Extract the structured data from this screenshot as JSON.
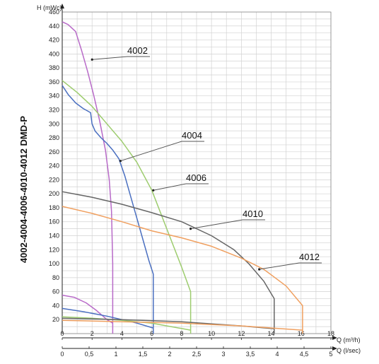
{
  "chart_data": {
    "type": "line",
    "title": "4002-4004-4006-4010-4012 DMD-P",
    "ylabel": "H (mWc)",
    "xlabel": "Q (m³/h)",
    "x2label": "Q (l/sec)",
    "xlim": [
      0,
      18
    ],
    "ylim": [
      0,
      460
    ],
    "x_ticks": [
      "0",
      "2",
      "4",
      "6",
      "8",
      "10",
      "12",
      "14",
      "16",
      "18"
    ],
    "x2_ticks": [
      "0",
      "0,5",
      "1",
      "1,5",
      "2",
      "2,5",
      "3",
      "3,5",
      "4",
      "4,5",
      "5"
    ],
    "y_ticks": [
      "20",
      "40",
      "60",
      "80",
      "100",
      "120",
      "140",
      "160",
      "180",
      "200",
      "220",
      "240",
      "260",
      "280",
      "300",
      "320",
      "340",
      "360",
      "380",
      "400",
      "420",
      "440",
      "460"
    ],
    "grid": true,
    "series": [
      {
        "name": "4002",
        "color": "#b86ac8",
        "head": [
          [
            0,
            446
          ],
          [
            0.4,
            442
          ],
          [
            0.9,
            432
          ],
          [
            1.3,
            405
          ],
          [
            1.7,
            375
          ],
          [
            2.1,
            342
          ],
          [
            2.5,
            305
          ],
          [
            2.9,
            262
          ],
          [
            3.15,
            220
          ],
          [
            3.3,
            175
          ],
          [
            3.38,
            100
          ],
          [
            3.38,
            0
          ]
        ],
        "power": [
          [
            0,
            55
          ],
          [
            0.8,
            52
          ],
          [
            1.6,
            44
          ],
          [
            2.3,
            33
          ],
          [
            3.0,
            20
          ],
          [
            3.38,
            15
          ]
        ]
      },
      {
        "name": "4004",
        "color": "#4a6fc0",
        "head": [
          [
            0,
            355
          ],
          [
            0.4,
            342
          ],
          [
            0.9,
            330
          ],
          [
            1.4,
            322
          ],
          [
            1.9,
            316
          ],
          [
            2.0,
            300
          ],
          [
            2.2,
            290
          ],
          [
            2.6,
            280
          ],
          [
            3.0,
            272
          ],
          [
            3.4,
            262
          ],
          [
            3.8,
            250
          ],
          [
            4.2,
            225
          ],
          [
            4.6,
            195
          ],
          [
            5.0,
            165
          ],
          [
            5.4,
            135
          ],
          [
            5.8,
            105
          ],
          [
            6.1,
            85
          ],
          [
            6.1,
            0
          ]
        ],
        "power": [
          [
            0,
            36
          ],
          [
            1.5,
            31
          ],
          [
            3.0,
            25
          ],
          [
            4.0,
            20
          ],
          [
            5.0,
            15
          ],
          [
            6.1,
            8
          ]
        ]
      },
      {
        "name": "4006",
        "color": "#9dcc6e",
        "head": [
          [
            0,
            362
          ],
          [
            1.0,
            345
          ],
          [
            2.0,
            325
          ],
          [
            3.0,
            300
          ],
          [
            4.0,
            275
          ],
          [
            5.0,
            245
          ],
          [
            6.0,
            205
          ],
          [
            7.0,
            150
          ],
          [
            8.0,
            95
          ],
          [
            8.6,
            60
          ],
          [
            8.6,
            0
          ]
        ],
        "power": [
          [
            0,
            24
          ],
          [
            2.0,
            22
          ],
          [
            4.0,
            19
          ],
          [
            6.0,
            15
          ],
          [
            8.6,
            5
          ]
        ]
      },
      {
        "name": "4010",
        "color": "#666666",
        "head": [
          [
            0,
            203
          ],
          [
            2,
            195
          ],
          [
            4,
            185
          ],
          [
            6,
            173
          ],
          [
            8,
            160
          ],
          [
            10,
            140
          ],
          [
            11.5,
            120
          ],
          [
            12.5,
            100
          ],
          [
            13.5,
            75
          ],
          [
            14.2,
            50
          ],
          [
            14.2,
            0
          ]
        ],
        "power": [
          [
            0,
            22
          ],
          [
            4,
            20
          ],
          [
            8,
            17
          ],
          [
            12,
            11
          ],
          [
            14.2,
            7
          ]
        ]
      },
      {
        "name": "4012",
        "color": "#f0a060",
        "head": [
          [
            0,
            182
          ],
          [
            2,
            172
          ],
          [
            4,
            160
          ],
          [
            6,
            147
          ],
          [
            8,
            137
          ],
          [
            10,
            125
          ],
          [
            12,
            108
          ],
          [
            13.5,
            92
          ],
          [
            15,
            68
          ],
          [
            16.1,
            40
          ],
          [
            16.1,
            0
          ]
        ],
        "power": [
          [
            0,
            19
          ],
          [
            4,
            17
          ],
          [
            8,
            15
          ],
          [
            12,
            11
          ],
          [
            16.1,
            5
          ]
        ]
      }
    ]
  }
}
